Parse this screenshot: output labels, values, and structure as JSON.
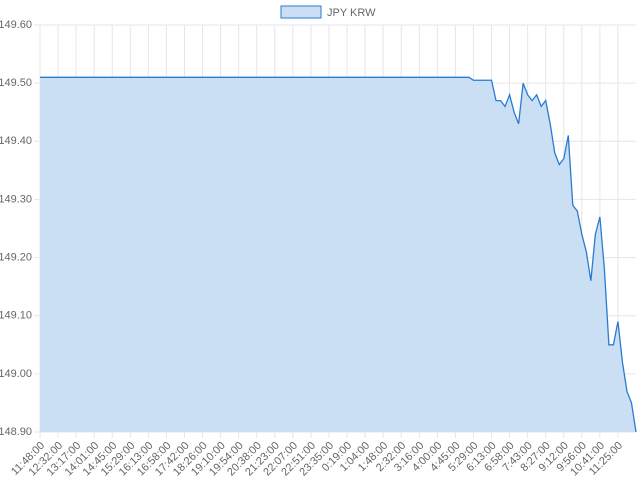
{
  "chart_data": {
    "type": "line",
    "categories": [
      "11:48:00",
      null,
      null,
      null,
      "12:32:00",
      null,
      null,
      null,
      "13:17:00",
      null,
      null,
      null,
      "14:01:00",
      null,
      null,
      null,
      "14:45:00",
      null,
      null,
      null,
      "15:29:00",
      null,
      null,
      null,
      "16:13:00",
      null,
      null,
      null,
      "16:58:00",
      null,
      null,
      null,
      "17:42:00",
      null,
      null,
      null,
      "18:26:00",
      null,
      null,
      null,
      "19:10:00",
      null,
      null,
      null,
      "19:54:00",
      null,
      null,
      null,
      "20:38:00",
      null,
      null,
      null,
      "21:23:00",
      null,
      null,
      null,
      "22:07:00",
      null,
      null,
      null,
      "22:51:00",
      null,
      null,
      null,
      "23:35:00",
      null,
      null,
      null,
      "0:19:00",
      null,
      null,
      null,
      "1:04:00",
      null,
      null,
      null,
      "1:48:00",
      null,
      null,
      null,
      "2:32:00",
      null,
      null,
      null,
      "3:16:00",
      null,
      null,
      null,
      "4:00:00",
      null,
      null,
      null,
      "4:45:00",
      null,
      null,
      null,
      "5:29:00",
      null,
      null,
      null,
      "6:13:00",
      null,
      null,
      null,
      "6:58:00",
      null,
      null,
      null,
      "7:43:00",
      null,
      null,
      null,
      "8:27:00",
      null,
      null,
      null,
      "9:12:00",
      null,
      null,
      null,
      "9:56:00",
      null,
      null,
      null,
      "10:41:00",
      null,
      null,
      null,
      "11:25:00",
      null,
      null,
      null,
      null
    ],
    "series": [
      {
        "name": "JPY KRW",
        "color": "#2a7bd0",
        "fill": "#cbdff4",
        "values": [
          149.51,
          149.51,
          149.51,
          149.51,
          149.51,
          149.51,
          149.51,
          149.51,
          149.51,
          149.51,
          149.51,
          149.51,
          149.51,
          149.51,
          149.51,
          149.51,
          149.51,
          149.51,
          149.51,
          149.51,
          149.51,
          149.51,
          149.51,
          149.51,
          149.51,
          149.51,
          149.51,
          149.51,
          149.51,
          149.51,
          149.51,
          149.51,
          149.51,
          149.51,
          149.51,
          149.51,
          149.51,
          149.51,
          149.51,
          149.51,
          149.51,
          149.51,
          149.51,
          149.51,
          149.51,
          149.51,
          149.51,
          149.51,
          149.51,
          149.51,
          149.51,
          149.51,
          149.51,
          149.51,
          149.51,
          149.51,
          149.51,
          149.51,
          149.51,
          149.51,
          149.51,
          149.51,
          149.51,
          149.51,
          149.51,
          149.51,
          149.51,
          149.51,
          149.51,
          149.51,
          149.51,
          149.51,
          149.51,
          149.51,
          149.51,
          149.51,
          149.51,
          149.51,
          149.51,
          149.51,
          149.51,
          149.51,
          149.51,
          149.51,
          149.51,
          149.51,
          149.51,
          149.51,
          149.51,
          149.51,
          149.51,
          149.51,
          149.51,
          149.51,
          149.51,
          149.51,
          149.505,
          149.505,
          149.505,
          149.505,
          149.505,
          149.47,
          149.47,
          149.46,
          149.48,
          149.45,
          149.43,
          149.5,
          149.48,
          149.47,
          149.48,
          149.46,
          149.47,
          149.43,
          149.38,
          149.36,
          149.37,
          149.41,
          149.29,
          149.28,
          149.24,
          149.21,
          149.16,
          149.24,
          149.27,
          149.18,
          149.05,
          149.05,
          149.09,
          149.02,
          148.97,
          148.95,
          148.9
        ]
      }
    ],
    "ylim": [
      148.9,
      149.6
    ],
    "yticks": [
      {
        "value": 148.9,
        "label": "148.90"
      },
      {
        "value": 149.0,
        "label": "149.00"
      },
      {
        "value": 149.1,
        "label": "149.10"
      },
      {
        "value": 149.2,
        "label": "149.20"
      },
      {
        "value": 149.3,
        "label": "149.30"
      },
      {
        "value": 149.4,
        "label": "149.40"
      },
      {
        "value": 149.5,
        "label": "149.50"
      },
      {
        "value": 149.6,
        "label": "149.60"
      }
    ],
    "grid": true,
    "legend": "top"
  }
}
